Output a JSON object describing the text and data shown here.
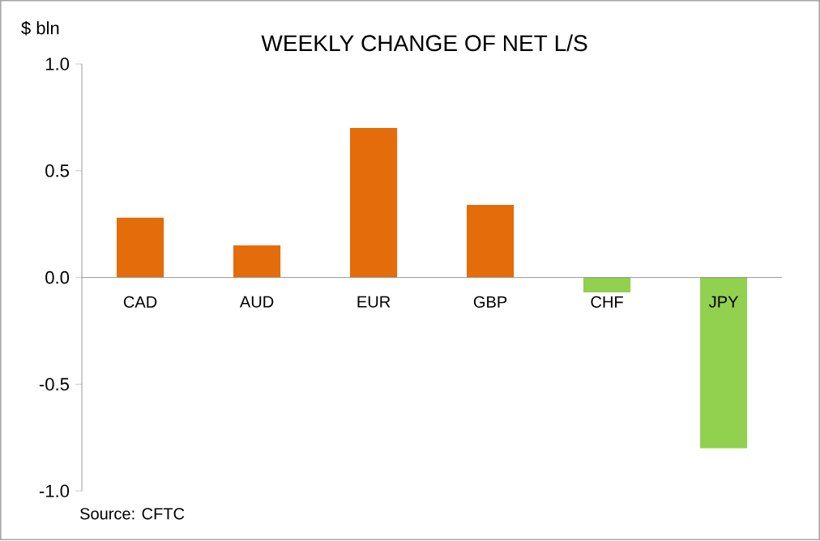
{
  "chart_data": {
    "type": "bar",
    "title": "WEEKLY CHANGE OF NET L/S",
    "ylabel": "$ bln",
    "categories": [
      "CAD",
      "AUD",
      "EUR",
      "GBP",
      "CHF",
      "JPY"
    ],
    "values": [
      0.28,
      0.15,
      0.7,
      0.34,
      -0.07,
      -0.8
    ],
    "colors": [
      "#e46c0a",
      "#e46c0a",
      "#e46c0a",
      "#e46c0a",
      "#92d050",
      "#92d050"
    ],
    "ylim": [
      -1,
      1
    ],
    "yticks": [
      {
        "value": -1,
        "label": "-1.0"
      },
      {
        "value": -0.5,
        "label": "-0.5"
      },
      {
        "value": 0,
        "label": "0.0"
      },
      {
        "value": 0.5,
        "label": "0.5"
      },
      {
        "value": 1,
        "label": "1.0"
      }
    ],
    "annotations": [
      "Source: CFTC"
    ]
  }
}
